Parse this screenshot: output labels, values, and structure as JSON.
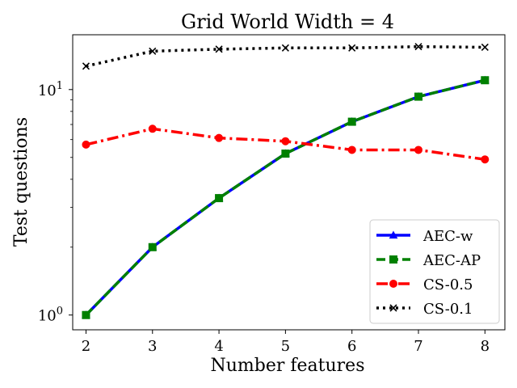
{
  "chart_data": {
    "type": "line",
    "title": "Grid World Width = 4",
    "xlabel": "Number features",
    "ylabel": "Test questions",
    "x": [
      2,
      3,
      4,
      5,
      6,
      7,
      8
    ],
    "xlim": [
      1.8,
      8.3
    ],
    "ylim": [
      0.86,
      17.5
    ],
    "yscale": "log",
    "xticks": [
      "2",
      "3",
      "4",
      "5",
      "6",
      "7",
      "8"
    ],
    "yticks": [
      {
        "value": 1,
        "base": "10",
        "exp": "0"
      },
      {
        "value": 10,
        "base": "10",
        "exp": "1"
      }
    ],
    "grid": false,
    "legend_position": "lower-right",
    "series": [
      {
        "name": "AEC-w",
        "color": "#0000ff",
        "dash": "solid",
        "marker": "triangle",
        "values": [
          1.0,
          2.0,
          3.3,
          5.2,
          7.2,
          9.3,
          11.0
        ]
      },
      {
        "name": "AEC-AP",
        "color": "#008000",
        "dash": "dashed",
        "marker": "square",
        "values": [
          1.0,
          2.0,
          3.3,
          5.2,
          7.2,
          9.3,
          11.0
        ]
      },
      {
        "name": "CS-0.5",
        "color": "#ff0000",
        "dash": "dashdot",
        "marker": "circle",
        "values": [
          5.7,
          6.7,
          6.1,
          5.9,
          5.4,
          5.4,
          4.9
        ]
      },
      {
        "name": "CS-0.1",
        "color": "#000000",
        "dash": "dotted",
        "marker": "x",
        "values": [
          12.7,
          14.8,
          15.1,
          15.3,
          15.3,
          15.5,
          15.4
        ]
      }
    ]
  }
}
